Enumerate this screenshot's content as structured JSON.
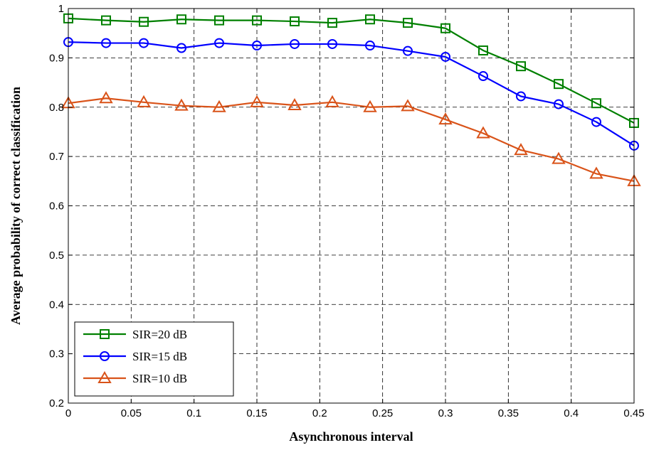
{
  "chart_data": {
    "type": "line",
    "title": "",
    "xlabel": "Asynchronous interval",
    "ylabel": "Average probability of correct classification",
    "xlim": [
      0,
      0.45
    ],
    "ylim": [
      0.2,
      1
    ],
    "xticks": [
      0,
      0.05,
      0.1,
      0.15,
      0.2,
      0.25,
      0.3,
      0.35,
      0.4,
      0.45
    ],
    "xtick_labels": [
      "0",
      "0.05",
      "0.1",
      "0.15",
      "0.2",
      "0.25",
      "0.3",
      "0.35",
      "0.4",
      "0.45"
    ],
    "yticks": [
      0.2,
      0.3,
      0.4,
      0.5,
      0.6,
      0.7,
      0.8,
      0.9,
      1
    ],
    "ytick_labels": [
      "0.2",
      "0.3",
      "0.4",
      "0.5",
      "0.6",
      "0.7",
      "0.8",
      "0.9",
      "1"
    ],
    "grid": true,
    "legend_position": "bottom-left",
    "x": [
      0,
      0.03,
      0.06,
      0.09,
      0.12,
      0.15,
      0.18,
      0.21,
      0.24,
      0.27,
      0.3,
      0.33,
      0.36,
      0.39,
      0.42,
      0.45
    ],
    "series": [
      {
        "name": "SIR=20 dB",
        "color": "#008000",
        "marker": "square",
        "values": [
          0.98,
          0.976,
          0.973,
          0.978,
          0.976,
          0.976,
          0.974,
          0.971,
          0.978,
          0.971,
          0.96,
          0.915,
          0.883,
          0.847,
          0.808,
          0.768
        ]
      },
      {
        "name": "SIR=15 dB",
        "color": "#0000ff",
        "marker": "circle",
        "values": [
          0.932,
          0.93,
          0.93,
          0.92,
          0.93,
          0.925,
          0.928,
          0.928,
          0.925,
          0.914,
          0.902,
          0.863,
          0.822,
          0.806,
          0.77,
          0.722
        ]
      },
      {
        "name": "SIR=10 dB",
        "color": "#d95319",
        "marker": "triangle",
        "values": [
          0.808,
          0.818,
          0.81,
          0.803,
          0.8,
          0.81,
          0.804,
          0.81,
          0.8,
          0.802,
          0.775,
          0.747,
          0.713,
          0.695,
          0.665,
          0.65
        ]
      }
    ]
  }
}
